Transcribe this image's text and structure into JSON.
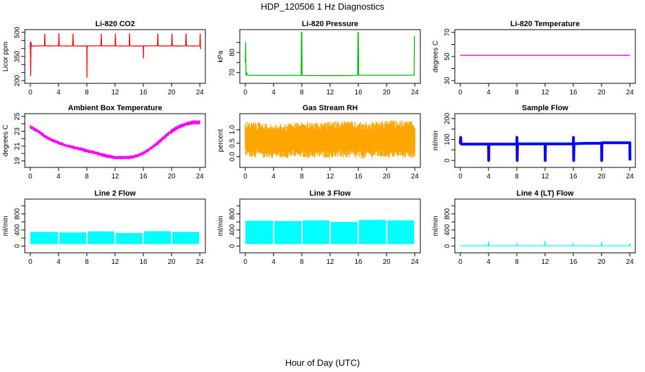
{
  "figure": {
    "title": "HDP_120506  1 Hz Diagnostics",
    "xlabel": "Hour of Day (UTC)"
  },
  "chart_data": [
    {
      "type": "line",
      "title": "Li-820 CO2",
      "ylabel": "Licor ppm",
      "color": "#ff0000",
      "xlim": [
        0,
        24
      ],
      "ylim": [
        200,
        500
      ],
      "xticks": [
        0,
        4,
        8,
        12,
        16,
        20,
        24
      ],
      "yticks": [
        200,
        250,
        300,
        350,
        400,
        450,
        500
      ],
      "yticklabels": [
        "200",
        "",
        "",
        "350",
        "",
        "",
        "500"
      ],
      "series": [
        {
          "style": "line",
          "x": [
            0,
            0.05,
            0.1,
            0.15,
            0.3,
            0.6,
            1.0,
            1.5,
            2.0,
            2.05,
            2.1,
            2.5,
            3.0,
            4.0,
            4.05,
            4.1,
            5.0,
            6.0,
            6.05,
            6.1,
            7.0,
            8.0,
            8.02,
            8.05,
            8.1,
            9.0,
            10.0,
            10.05,
            10.1,
            11.0,
            12.0,
            12.05,
            12.1,
            13.0,
            14.0,
            14.05,
            14.1,
            15.0,
            16.0,
            16.02,
            16.05,
            16.1,
            17.0,
            18.0,
            18.05,
            18.1,
            19.0,
            20.0,
            20.05,
            20.1,
            21.0,
            22.0,
            22.05,
            22.1,
            23.0,
            24.0,
            24.05,
            24.1
          ],
          "y": [
            440,
            230,
            440,
            415,
            415,
            415,
            416,
            416,
            416,
            490,
            416,
            415,
            416,
            416,
            492,
            416,
            415,
            416,
            490,
            416,
            415,
            416,
            220,
            416,
            416,
            416,
            416,
            490,
            416,
            416,
            416,
            490,
            416,
            415,
            416,
            492,
            416,
            415,
            416,
            340,
            416,
            416,
            416,
            416,
            492,
            416,
            415,
            416,
            490,
            416,
            415,
            416,
            492,
            416,
            415,
            416,
            490,
            395
          ]
        }
      ]
    },
    {
      "type": "line",
      "title": "Li-820 Pressure",
      "ylabel": "kPa",
      "color": "#00bb00",
      "xlim": [
        0,
        24
      ],
      "ylim": [
        66,
        90
      ],
      "xticks": [
        0,
        4,
        8,
        12,
        16,
        20,
        24
      ],
      "yticks": [
        70,
        75,
        80,
        85
      ],
      "yticklabels": [
        "70",
        "",
        "80",
        ""
      ],
      "series": [
        {
          "style": "line",
          "x": [
            0,
            0.05,
            0.1,
            0.2,
            0.3,
            2,
            4,
            6,
            7.9,
            7.95,
            8.0,
            8.05,
            8.1,
            10,
            12,
            14,
            15.9,
            15.95,
            16.0,
            16.05,
            16.1,
            18,
            20,
            22,
            23.9,
            23.95,
            24.0
          ],
          "y": [
            75,
            85,
            68.6,
            70,
            68.7,
            68.6,
            68.6,
            68.6,
            68.6,
            90,
            90,
            68.6,
            68.6,
            68.5,
            68.5,
            68.5,
            68.6,
            90,
            90,
            68.7,
            68.7,
            68.7,
            68.7,
            68.7,
            68.7,
            88,
            88
          ]
        }
      ]
    },
    {
      "type": "line",
      "title": "Li-820 Temperature",
      "ylabel": "degrees C",
      "color": "#ff00ff",
      "xlim": [
        0,
        24
      ],
      "ylim": [
        30,
        70
      ],
      "xticks": [
        0,
        4,
        8,
        12,
        16,
        20,
        24
      ],
      "yticks": [
        30,
        40,
        50,
        60,
        70
      ],
      "yticklabels": [
        "30",
        "",
        "50",
        "",
        "70"
      ],
      "series": [
        {
          "style": "line",
          "x": [
            0,
            24
          ],
          "y": [
            51,
            51
          ]
        }
      ]
    },
    {
      "type": "area",
      "title": "Ambient Box Temperature",
      "ylabel": "degrees C",
      "color": "#ff00ff",
      "xlim": [
        0,
        24
      ],
      "ylim": [
        18.5,
        25
      ],
      "xticks": [
        0,
        4,
        8,
        12,
        16,
        20,
        24
      ],
      "yticks": [
        19,
        20,
        21,
        22,
        23,
        24,
        25
      ],
      "yticklabels": [
        "19",
        "",
        "21",
        "",
        "23",
        "",
        "25"
      ],
      "series": [
        {
          "style": "band",
          "x": [
            0,
            1,
            2,
            3,
            4,
            5,
            6,
            7,
            8,
            9,
            10,
            11,
            12,
            13,
            14,
            15,
            16,
            17,
            18,
            19,
            20,
            21,
            22,
            23,
            24
          ],
          "low": [
            23.3,
            22.8,
            22.1,
            21.6,
            21.2,
            20.9,
            20.6,
            20.4,
            20.1,
            19.9,
            19.6,
            19.4,
            19.2,
            19.2,
            19.2,
            19.4,
            19.8,
            20.4,
            21.1,
            21.9,
            22.7,
            23.3,
            23.7,
            23.9,
            23.9
          ],
          "high": [
            23.9,
            23.3,
            22.6,
            22.1,
            21.7,
            21.3,
            21.1,
            20.9,
            20.6,
            20.4,
            20.1,
            19.9,
            19.7,
            19.7,
            19.7,
            19.9,
            20.3,
            20.9,
            21.7,
            22.5,
            23.3,
            23.9,
            24.2,
            24.5,
            24.5
          ]
        }
      ]
    },
    {
      "type": "area",
      "title": "Gas Stream RH",
      "ylabel": "percent",
      "color": "#ffa500",
      "xlim": [
        0,
        24
      ],
      "ylim": [
        -0.3,
        1.5
      ],
      "xticks": [
        0,
        4,
        8,
        12,
        16,
        20,
        24
      ],
      "yticks": [
        0,
        0.5,
        1.0
      ],
      "yticklabels": [
        "0.0",
        "0.5",
        "1.0"
      ],
      "series": [
        {
          "style": "band",
          "x": [
            0,
            2,
            4,
            6,
            8,
            10,
            12,
            14,
            16,
            18,
            20,
            22,
            24
          ],
          "low": [
            0.0,
            -0.05,
            -0.05,
            -0.05,
            -0.05,
            -0.05,
            -0.05,
            -0.05,
            -0.1,
            -0.05,
            -0.05,
            -0.05,
            -0.05
          ],
          "high": [
            1.3,
            1.3,
            1.2,
            1.25,
            1.3,
            1.25,
            1.3,
            1.35,
            1.3,
            1.3,
            1.35,
            1.35,
            1.3
          ]
        }
      ]
    },
    {
      "type": "line",
      "title": "Sample Flow",
      "ylabel": "ml/min",
      "color": "#0000ff",
      "xlim": [
        0,
        24
      ],
      "ylim": [
        -20,
        210
      ],
      "xticks": [
        0,
        4,
        8,
        12,
        16,
        20,
        24
      ],
      "yticks": [
        0,
        50,
        100,
        150,
        200
      ],
      "yticklabels": [
        "0",
        "",
        "100",
        "",
        "200"
      ],
      "series": [
        {
          "style": "thick",
          "x": [
            0,
            0.05,
            0.1,
            0.2,
            4.0,
            4.02,
            4.05,
            4.1,
            8.0,
            8.02,
            8.05,
            8.1,
            12.0,
            12.02,
            12.05,
            12.1,
            16.0,
            16.02,
            16.05,
            16.1,
            18,
            20.0,
            20.02,
            20.05,
            20.1,
            24.0,
            24.02
          ],
          "y": [
            80,
            110,
            80,
            78,
            78,
            0,
            78,
            78,
            78,
            110,
            0,
            79,
            79,
            0,
            79,
            79,
            79,
            110,
            0,
            80,
            82,
            82,
            0,
            84,
            84,
            84,
            0
          ]
        }
      ]
    },
    {
      "type": "area",
      "title": "Line 2 Flow",
      "ylabel": "ml/min",
      "color": "#00ffff",
      "xlim": [
        0,
        24
      ],
      "ylim": [
        -100,
        1100
      ],
      "xticks": [
        0,
        4,
        8,
        12,
        16,
        20,
        24
      ],
      "yticks": [
        0,
        200,
        400,
        600,
        800,
        1000
      ],
      "yticklabels": [
        "0",
        "",
        "400",
        "",
        "800",
        ""
      ],
      "series": [
        {
          "style": "blocks",
          "segments": [
            [
              0,
              4,
              350
            ],
            [
              4,
              8,
              340
            ],
            [
              8,
              12,
              365
            ],
            [
              12,
              16,
              325
            ],
            [
              16,
              20,
              370
            ],
            [
              20,
              24,
              350
            ]
          ],
          "base": 50
        }
      ]
    },
    {
      "type": "area",
      "title": "Line 3 Flow",
      "ylabel": "ml/min",
      "color": "#00ffff",
      "xlim": [
        0,
        24
      ],
      "ylim": [
        -100,
        1100
      ],
      "xticks": [
        0,
        4,
        8,
        12,
        16,
        20,
        24
      ],
      "yticks": [
        0,
        200,
        400,
        600,
        800,
        1000
      ],
      "yticklabels": [
        "0",
        "",
        "400",
        "",
        "800",
        ""
      ],
      "series": [
        {
          "style": "blocks",
          "segments": [
            [
              0,
              4,
              630
            ],
            [
              4,
              8,
              620
            ],
            [
              8,
              12,
              640
            ],
            [
              12,
              16,
              600
            ],
            [
              16,
              20,
              650
            ],
            [
              20,
              24,
              640
            ]
          ],
          "base": 50
        }
      ]
    },
    {
      "type": "line",
      "title": "Line 4 (LT) Flow",
      "ylabel": "ml/min",
      "color": "#00ffff",
      "xlim": [
        0,
        24
      ],
      "ylim": [
        -100,
        1100
      ],
      "xticks": [
        0,
        4,
        8,
        12,
        16,
        20,
        24
      ],
      "yticks": [
        0,
        200,
        400,
        600,
        800,
        1000
      ],
      "yticklabels": [
        "0",
        "",
        "400",
        "",
        "800",
        ""
      ],
      "series": [
        {
          "style": "line",
          "x": [
            0,
            3.95,
            4.0,
            4.05,
            7.95,
            8.0,
            8.05,
            11.95,
            12.0,
            12.05,
            15.95,
            16.0,
            16.05,
            19.95,
            20.0,
            20.05,
            23.95,
            24.0,
            24.05
          ],
          "y": [
            5,
            5,
            110,
            5,
            5,
            70,
            5,
            5,
            120,
            5,
            5,
            70,
            5,
            5,
            100,
            5,
            5,
            60,
            5
          ]
        }
      ]
    }
  ]
}
